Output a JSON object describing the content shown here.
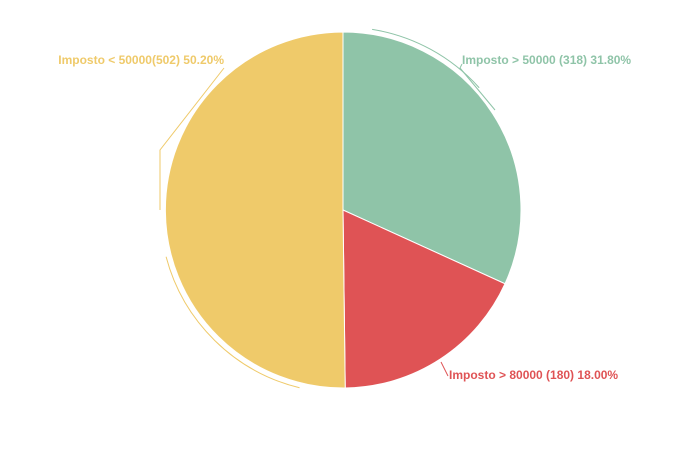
{
  "chart_data": {
    "type": "pie",
    "title": "",
    "legend": "none",
    "slices": [
      {
        "label": "Imposto > 50000 (318) 31.80%",
        "value": 318,
        "percent": 31.8,
        "color": "#8fc4a8"
      },
      {
        "label": "Imposto > 80000 (180) 18.00%",
        "value": 180,
        "percent": 18.0,
        "color": "#df5355"
      },
      {
        "label": "Imposto < 50000(502) 50.20%",
        "value": 502,
        "percent": 50.2,
        "color": "#efca6a"
      }
    ]
  }
}
